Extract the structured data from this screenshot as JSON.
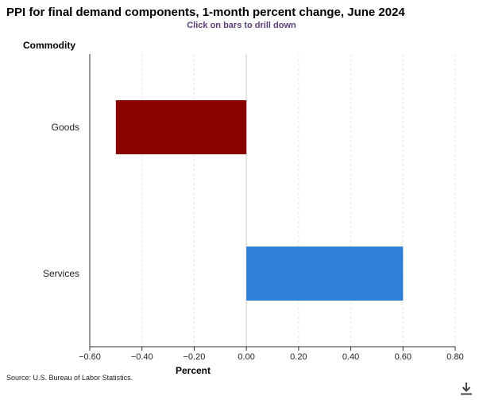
{
  "chart_data": {
    "type": "bar",
    "orientation": "horizontal",
    "title": "PPI for final demand components, 1-month percent change, June 2024",
    "subtitle": "Click on bars to drill down",
    "ylabel": "Commodity",
    "xlabel": "Percent",
    "categories": [
      "Goods",
      "Services"
    ],
    "values": [
      -0.5,
      0.6
    ],
    "colors": [
      "#8b0000",
      "#2e7fd6"
    ],
    "xlim": [
      -0.6,
      0.8
    ],
    "xticks": [
      -0.6,
      -0.4,
      -0.2,
      0.0,
      0.2,
      0.4,
      0.6,
      0.8
    ],
    "xtick_labels": [
      "−0.60",
      "−0.40",
      "−0.20",
      "0.00",
      "0.20",
      "0.40",
      "0.60",
      "0.80"
    ],
    "grid": true
  },
  "source": "Source: U.S. Bureau of Labor Statistics.",
  "download_icon": "download-icon"
}
